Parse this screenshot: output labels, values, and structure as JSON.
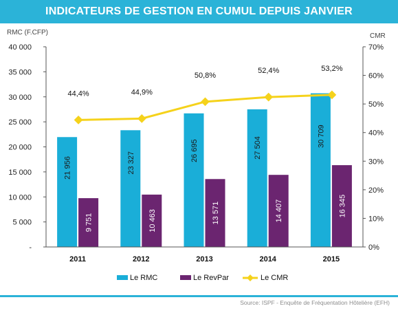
{
  "title": "INDICATEURS DE GESTION EN CUMUL DEPUIS JANVIER",
  "source": "Source: ISPF - Enquête de Fréquentation Hôtelière (EFH)",
  "colors": {
    "rmc": "#1aaed8",
    "revpar": "#6b2570",
    "cmr": "#f5d21b",
    "accent": "#2bb3d8"
  },
  "chart_data": {
    "type": "bar",
    "categories": [
      "2011",
      "2012",
      "2013",
      "2014",
      "2015"
    ],
    "series": [
      {
        "name": "Le RMC",
        "type": "bar",
        "axis": "left",
        "values": [
          21956,
          23327,
          26695,
          27504,
          30709
        ],
        "labels": [
          "21 956",
          "23 327",
          "26 695",
          "27 504",
          "30 709"
        ]
      },
      {
        "name": "Le RevPar",
        "type": "bar",
        "axis": "left",
        "values": [
          9751,
          10463,
          13571,
          14407,
          16345
        ],
        "labels": [
          "9 751",
          "10 463",
          "13 571",
          "14 407",
          "16 345"
        ]
      },
      {
        "name": "Le CMR",
        "type": "line",
        "axis": "right",
        "values": [
          44.4,
          44.9,
          50.8,
          52.4,
          53.2
        ],
        "labels": [
          "44,4%",
          "44,9%",
          "50,8%",
          "52,4%",
          "53,2%"
        ]
      }
    ],
    "ylabel_left": "RMC (F.CFP)",
    "ylabel_right": "CMR",
    "ylim_left": [
      0,
      40000
    ],
    "ylim_right": [
      0,
      70
    ],
    "yticks_left": [
      "-",
      "5 000",
      "10 000",
      "15 000",
      "20 000",
      "25 000",
      "30 000",
      "35 000",
      "40 000"
    ],
    "yticks_right": [
      "0%",
      "10%",
      "20%",
      "30%",
      "40%",
      "50%",
      "60%",
      "70%"
    ],
    "grid": false,
    "legend": "bottom"
  }
}
